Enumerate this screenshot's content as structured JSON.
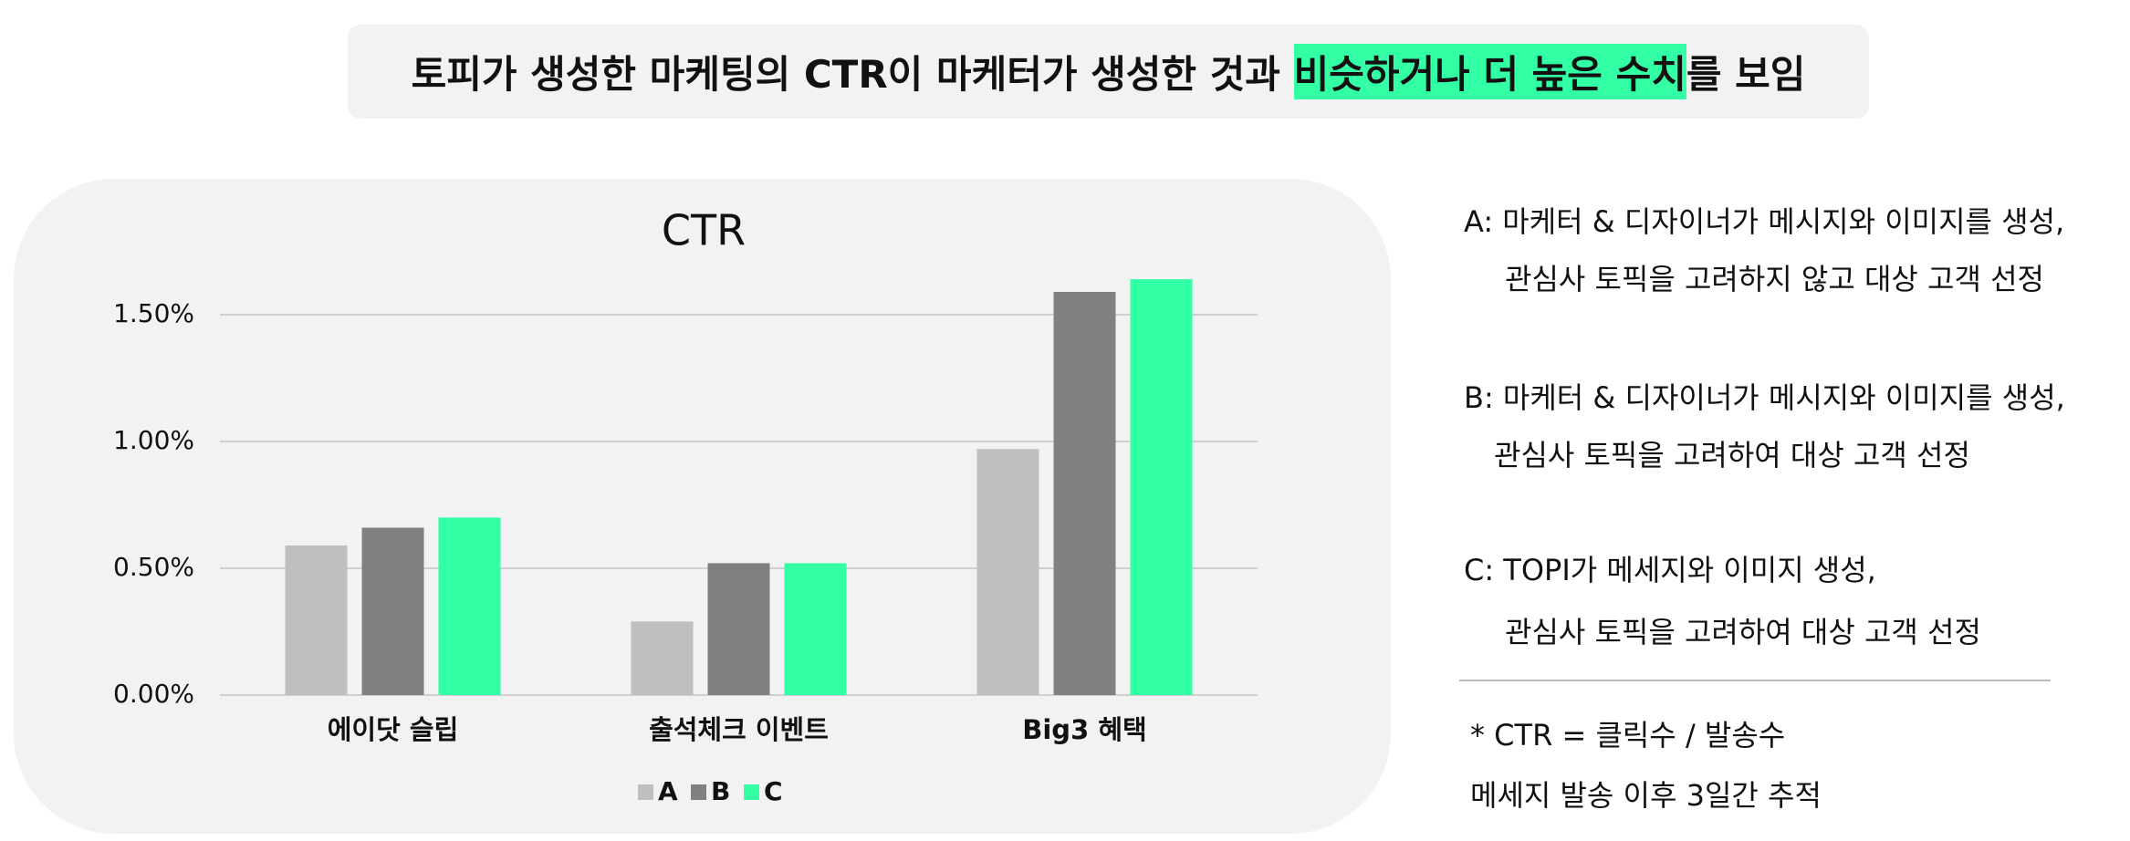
{
  "header": {
    "title_before": "토피가 생성한 마케팅의 CTR이 마케터가 생성한 것과",
    "title_highlight": "비슷하거나 더 높은 수치",
    "title_after": "를 보임"
  },
  "chart_data": {
    "type": "bar",
    "title": "CTR",
    "categories": [
      "에이닷 슬립",
      "출석체크 이벤트",
      "Big3 혜택"
    ],
    "series": [
      {
        "name": "A",
        "color": "#bfbfbf",
        "values": [
          0.59,
          0.29,
          0.97
        ]
      },
      {
        "name": "B",
        "color": "#808080",
        "values": [
          0.66,
          0.52,
          1.59
        ]
      },
      {
        "name": "C",
        "color": "#33ffa5",
        "values": [
          0.7,
          0.52,
          1.64
        ]
      }
    ],
    "ylim": [
      0,
      1.75
    ],
    "yticks": [
      {
        "value": 0,
        "label": "0.00%"
      },
      {
        "value": 0.5,
        "label": "0.50%"
      },
      {
        "value": 1,
        "label": "1.00%"
      },
      {
        "value": 1.5,
        "label": "1.50%"
      }
    ],
    "grid": true,
    "legend": "bottom"
  },
  "notes": {
    "items": [
      {
        "lines": [
          "A: 마케터 & 디자이너가 메시지와 이미지를 생성,",
          "관심사 토픽을 고려하지 않고 대상 고객 선정"
        ]
      },
      {
        "lines": [
          "B: 마케터 & 디자이너가 메시지와 이미지를 생성,",
          "관심사 토픽을 고려하여 대상 고객 선정"
        ]
      },
      {
        "lines": [
          "C: TOPI가 메세지와 이미지 생성,",
          "관심사 토픽을 고려하여 대상 고객 선정"
        ]
      }
    ],
    "footnote": [
      "* CTR = 클릭수 / 발송수",
      "메세지 발송 이후 3일간 추적"
    ]
  }
}
